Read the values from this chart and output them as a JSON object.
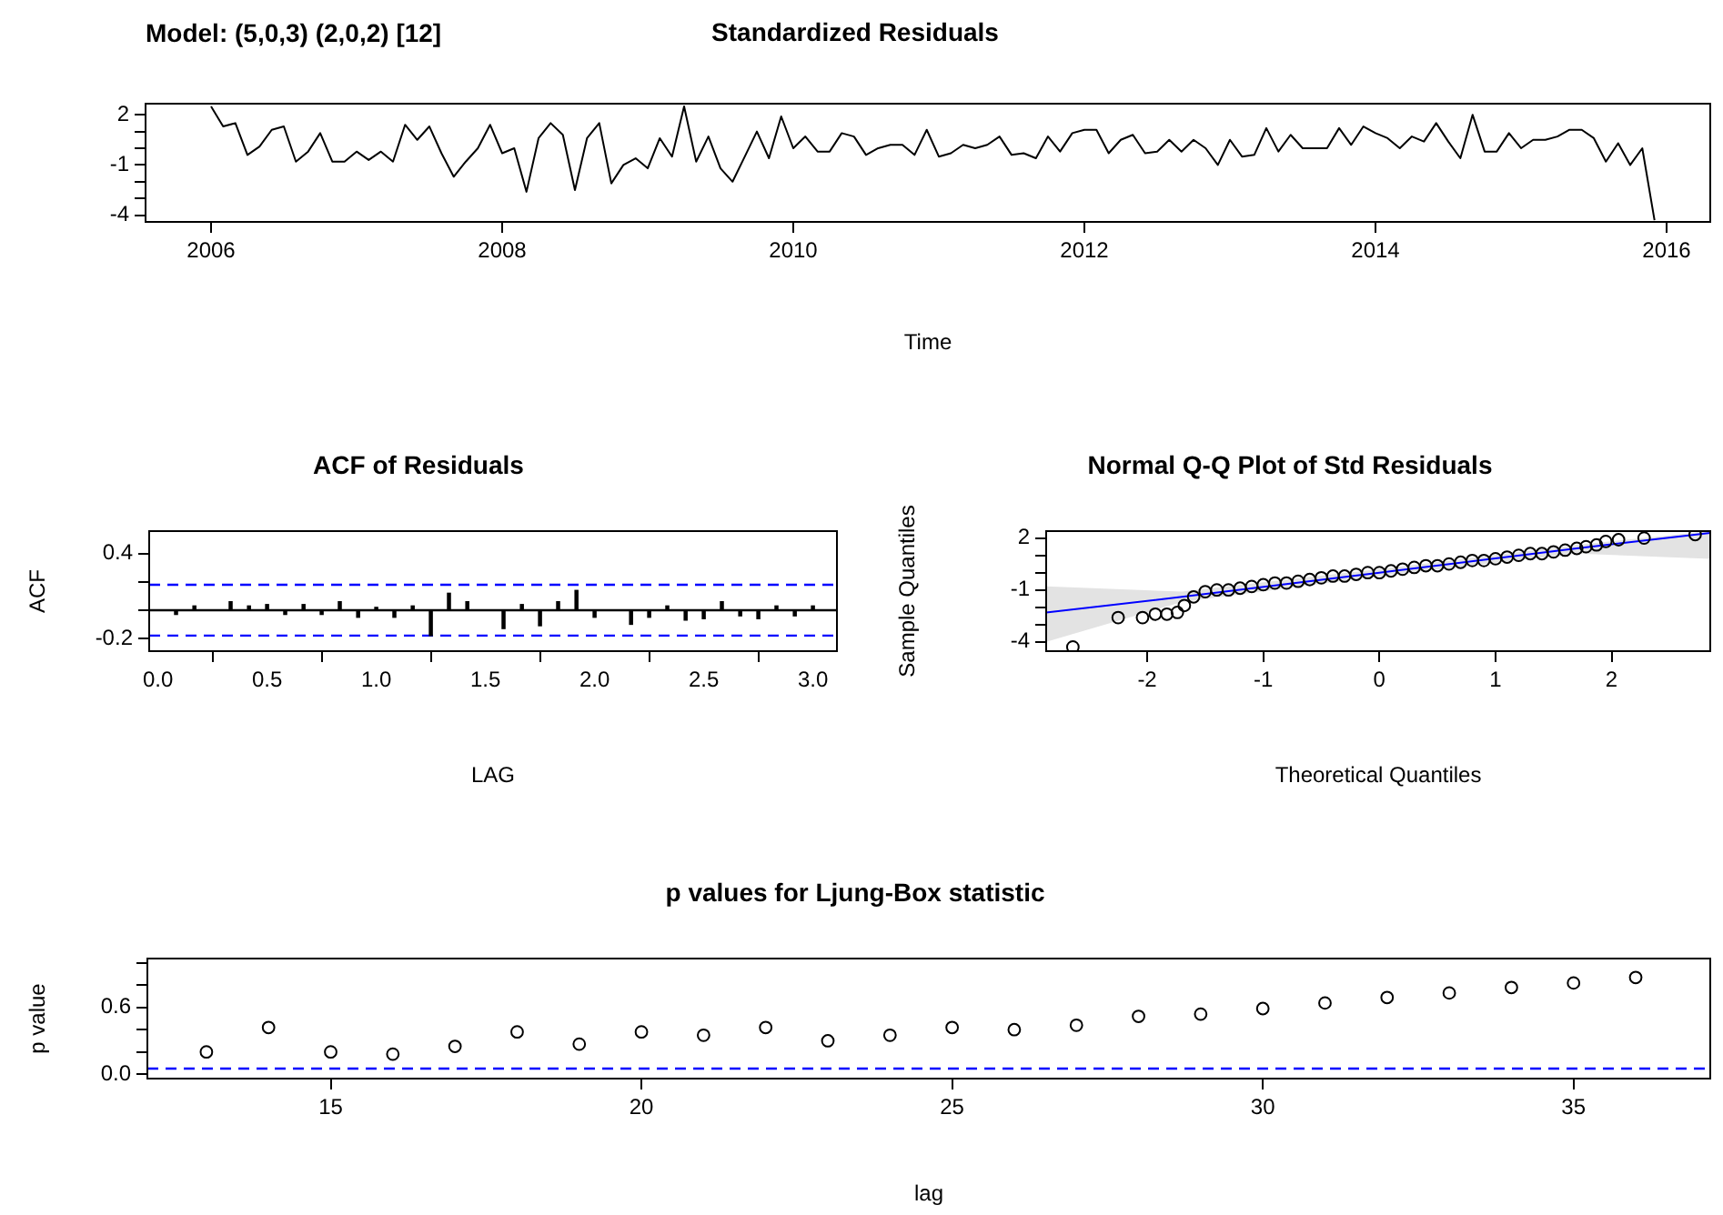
{
  "chart_data": [
    {
      "type": "line",
      "title": "Standardized Residuals",
      "xlabel": "Time",
      "annotations": [
        "Model: (5,0,3) (2,0,2) [12]"
      ],
      "x": [
        2006,
        2006.083,
        2006.167,
        2006.25,
        2006.333,
        2006.417,
        2006.5,
        2006.583,
        2006.667,
        2006.75,
        2006.833,
        2006.917,
        2007,
        2007.083,
        2007.167,
        2007.25,
        2007.333,
        2007.417,
        2007.5,
        2007.583,
        2007.667,
        2007.75,
        2007.833,
        2007.917,
        2008,
        2008.083,
        2008.167,
        2008.25,
        2008.333,
        2008.417,
        2008.5,
        2008.583,
        2008.667,
        2008.75,
        2008.833,
        2008.917,
        2009,
        2009.083,
        2009.167,
        2009.25,
        2009.333,
        2009.417,
        2009.5,
        2009.583,
        2009.667,
        2009.75,
        2009.833,
        2009.917,
        2010,
        2010.083,
        2010.167,
        2010.25,
        2010.333,
        2010.417,
        2010.5,
        2010.583,
        2010.667,
        2010.75,
        2010.833,
        2010.917,
        2011,
        2011.083,
        2011.167,
        2011.25,
        2011.333,
        2011.417,
        2011.5,
        2011.583,
        2011.667,
        2011.75,
        2011.833,
        2011.917,
        2012,
        2012.083,
        2012.167,
        2012.25,
        2012.333,
        2012.417,
        2012.5,
        2012.583,
        2012.667,
        2012.75,
        2012.833,
        2012.917,
        2013,
        2013.083,
        2013.167,
        2013.25,
        2013.333,
        2013.417,
        2013.5,
        2013.583,
        2013.667,
        2013.75,
        2013.833,
        2013.917,
        2014,
        2014.083,
        2014.167,
        2014.25,
        2014.333,
        2014.417,
        2014.5,
        2014.583,
        2014.667,
        2014.75,
        2014.833,
        2014.917,
        2015,
        2015.083,
        2015.167,
        2015.25,
        2015.333,
        2015.417,
        2015.5,
        2015.583,
        2015.667,
        2015.75,
        2015.833,
        2015.917
      ],
      "series": [
        {
          "color": "#000000",
          "values": [
            2.5,
            1.3,
            1.5,
            -0.4,
            0.1,
            1.1,
            1.3,
            -0.8,
            -0.2,
            0.9,
            -0.8,
            -0.8,
            -0.2,
            -0.7,
            -0.2,
            -0.8,
            1.4,
            0.5,
            1.3,
            -0.3,
            -1.7,
            -0.8,
            0,
            1.4,
            -0.3,
            0,
            -2.6,
            0.6,
            1.5,
            0.8,
            -2.5,
            0.6,
            1.5,
            -2.1,
            -1,
            -0.6,
            -1.2,
            0.6,
            -0.5,
            2.5,
            -0.8,
            0.7,
            -1.2,
            -2,
            -0.5,
            1,
            -0.6,
            1.9,
            0,
            0.7,
            -0.2,
            -0.2,
            0.9,
            0.7,
            -0.4,
            0,
            0.2,
            0.2,
            -0.4,
            1.1,
            -0.5,
            -0.3,
            0.2,
            0,
            0.2,
            0.7,
            -0.4,
            -0.3,
            -0.6,
            0.7,
            -0.2,
            0.9,
            1.1,
            1.1,
            -0.3,
            0.5,
            0.8,
            -0.3,
            -0.2,
            0.5,
            -0.2,
            0.5,
            0,
            -1,
            0.5,
            -0.5,
            -0.4,
            1.2,
            -0.2,
            0.8,
            0,
            0,
            0,
            1.2,
            0.2,
            1.3,
            0.9,
            0.6,
            0,
            0.7,
            0.4,
            1.5,
            0.4,
            -0.6,
            2,
            -0.2,
            -0.2,
            0.9,
            0,
            0.5,
            0.5,
            0.7,
            1.1,
            1.1,
            0.6,
            -0.8,
            0.3,
            -1,
            0,
            -4.3
          ]
        }
      ],
      "xlim": [
        2005.55,
        2016.3
      ],
      "xticks": [
        2006,
        2008,
        2010,
        2012,
        2014,
        2016
      ],
      "ylim": [
        -4.4,
        2.66
      ],
      "yticks": [
        -4,
        {
          "value": -3,
          "label": null
        },
        {
          "value": -2,
          "label": null
        },
        -1,
        {
          "value": 0,
          "label": null
        },
        {
          "value": 1,
          "label": null
        },
        2
      ],
      "grid": false,
      "legend": false
    },
    {
      "type": "bar",
      "title": "ACF of Residuals",
      "xlabel": "LAG",
      "ylabel": "ACF",
      "x": [
        0.083,
        0.167,
        0.25,
        0.333,
        0.417,
        0.5,
        0.583,
        0.667,
        0.75,
        0.833,
        0.917,
        1,
        1.083,
        1.167,
        1.25,
        1.333,
        1.417,
        1.5,
        1.583,
        1.667,
        1.75,
        1.833,
        1.917,
        2,
        2.083,
        2.167,
        2.25,
        2.333,
        2.417,
        2.5,
        2.583,
        2.667,
        2.75,
        2.833,
        2.917,
        3
      ],
      "series": [
        {
          "color": "#000000",
          "values": [
            -0.03,
            0.03,
            null,
            0.06,
            0.03,
            0.04,
            -0.03,
            0.04,
            -0.03,
            0.06,
            -0.05,
            0.02,
            -0.05,
            0.03,
            -0.18,
            0.12,
            0.06,
            null,
            -0.13,
            0.04,
            -0.11,
            0.06,
            0.14,
            -0.05,
            0,
            -0.1,
            -0.05,
            0.03,
            -0.07,
            -0.06,
            0.06,
            -0.04,
            -0.06,
            0.03,
            -0.04,
            0.03
          ]
        }
      ],
      "xlim": [
        -0.04,
        3.11
      ],
      "xticks": [
        {
          "value": 0,
          "label": "0.0"
        },
        0.5,
        {
          "value": 1,
          "label": "1.0"
        },
        1.5,
        {
          "value": 2,
          "label": "2.0"
        },
        2.5,
        {
          "value": 3,
          "label": "3.0"
        }
      ],
      "ylim": [
        -0.29,
        0.56
      ],
      "yticks": [
        -0.2,
        {
          "value": 0,
          "label": null
        },
        {
          "value": 0.2,
          "label": null
        },
        0.4
      ],
      "ref_lines": [
        {
          "axis": "y",
          "value": 0,
          "color": "#000000"
        },
        {
          "axis": "y",
          "value": 0.18,
          "color": "#0000ff",
          "line_style": "dashed"
        },
        {
          "axis": "y",
          "value": -0.18,
          "color": "#0000ff",
          "line_style": "dashed"
        }
      ],
      "grid": false,
      "legend": false
    },
    {
      "type": "scatter",
      "title": "Normal Q-Q Plot of Std Residuals",
      "xlabel": "Theoretical Quantiles",
      "ylabel": "Sample Quantiles",
      "marker": "circle",
      "series": [
        {
          "color": "#000000",
          "x": [
            -2.64,
            -2.25,
            -2.04,
            -1.93,
            -1.83,
            -1.74,
            -1.68,
            -1.6,
            -1.5,
            -1.4,
            -1.3,
            -1.2,
            -1.1,
            -1,
            -0.9,
            -0.8,
            -0.7,
            -0.6,
            -0.5,
            -0.4,
            -0.3,
            -0.2,
            -0.1,
            0,
            0.1,
            0.2,
            0.3,
            0.4,
            0.5,
            0.6,
            0.7,
            0.8,
            0.9,
            1,
            1.1,
            1.2,
            1.3,
            1.4,
            1.5,
            1.6,
            1.7,
            1.78,
            1.87,
            1.95,
            2.06,
            2.28,
            2.72
          ],
          "values": [
            -4.3,
            -2.6,
            -2.6,
            -2.4,
            -2.4,
            -2.3,
            -1.9,
            -1.4,
            -1.1,
            -1,
            -1,
            -0.9,
            -0.8,
            -0.7,
            -0.6,
            -0.6,
            -0.5,
            -0.4,
            -0.3,
            -0.2,
            -0.2,
            -0.1,
            0,
            0,
            0.1,
            0.2,
            0.3,
            0.4,
            0.4,
            0.5,
            0.6,
            0.7,
            0.7,
            0.8,
            0.9,
            1,
            1.1,
            1.1,
            1.2,
            1.3,
            1.4,
            1.5,
            1.6,
            1.8,
            1.9,
            2,
            2.2
          ]
        },
        {
          "type": "line",
          "marker": "none",
          "color": "#0000ff",
          "x": [
            -2.87,
            -1.7,
            0,
            1.7,
            2.85
          ],
          "values": [
            -2.3,
            -1.4,
            0,
            1.4,
            2.3
          ],
          "lower": [
            -4,
            -1.7,
            -0.2,
            1.1,
            0.8
          ],
          "upper": [
            -0.8,
            -1.1,
            0.2,
            1.6,
            2.4
          ]
        }
      ],
      "xlim": [
        -2.87,
        2.85
      ],
      "xticks": [
        -2,
        -1,
        0,
        1,
        2
      ],
      "ylim": [
        -4.54,
        2.4
      ],
      "yticks": [
        -4,
        {
          "value": -3,
          "label": null
        },
        {
          "value": -2,
          "label": null
        },
        -1,
        {
          "value": 0,
          "label": null
        },
        {
          "value": 1,
          "label": null
        },
        2
      ],
      "grid": false,
      "legend": false
    },
    {
      "type": "scatter",
      "title": "p values for Ljung-Box statistic",
      "xlabel": "lag",
      "ylabel": "p value",
      "marker": "circle",
      "x": [
        13,
        14,
        15,
        16,
        17,
        18,
        19,
        20,
        21,
        22,
        23,
        24,
        25,
        26,
        27,
        28,
        29,
        30,
        31,
        32,
        33,
        34,
        35,
        36
      ],
      "series": [
        {
          "color": "#000000",
          "values": [
            0.2,
            0.42,
            0.2,
            0.18,
            0.25,
            0.38,
            0.27,
            0.38,
            0.35,
            0.42,
            0.3,
            0.35,
            0.42,
            0.4,
            0.44,
            0.52,
            0.54,
            0.59,
            0.64,
            0.69,
            0.73,
            0.78,
            0.82,
            0.87
          ]
        }
      ],
      "xlim": [
        12.05,
        37.2
      ],
      "xticks": [
        15,
        20,
        25,
        30,
        35
      ],
      "ylim": [
        -0.04,
        1.04
      ],
      "yticks": [
        {
          "value": 0,
          "label": "0.0"
        },
        {
          "value": 0.2,
          "label": null
        },
        {
          "value": 0.4,
          "label": null
        },
        0.6,
        {
          "value": 0.8,
          "label": null
        },
        {
          "value": 1,
          "label": null
        }
      ],
      "ref_lines": [
        {
          "axis": "y",
          "value": 0.05,
          "color": "#0000ff",
          "line_style": "dashed"
        }
      ],
      "grid": false,
      "legend": false
    }
  ]
}
